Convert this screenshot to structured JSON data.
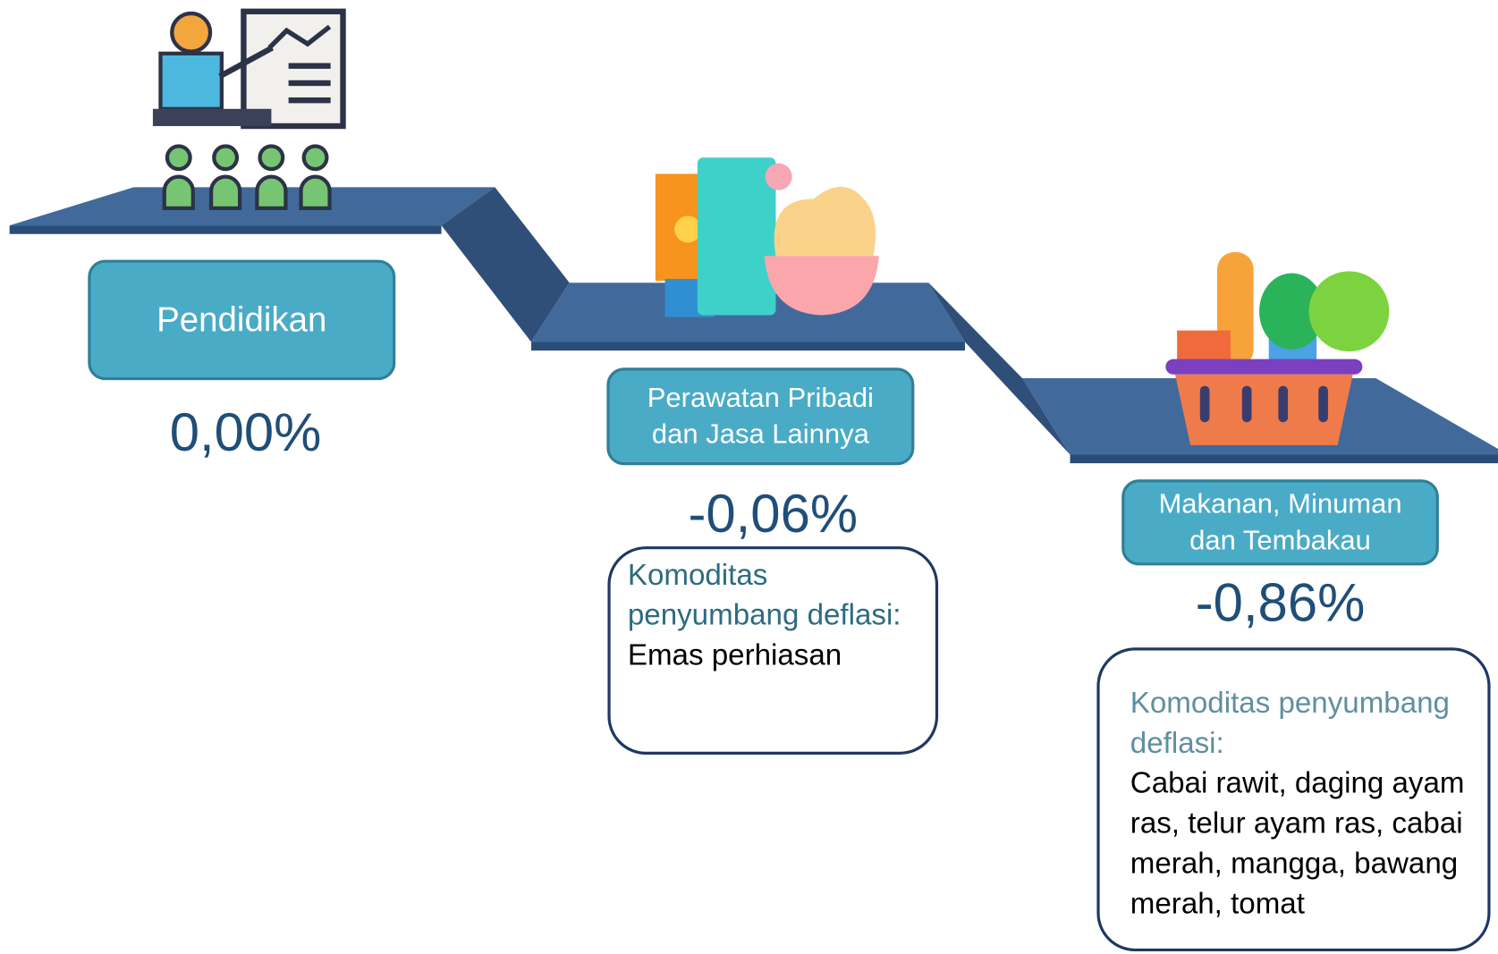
{
  "items": [
    {
      "label": "Pendidikan",
      "value": "0,00%"
    },
    {
      "label": "Perawatan Pribadi dan Jasa Lainnya",
      "value": "-0,06%",
      "note_title": "Komoditas penyumbang deflasi:",
      "note_text": "Emas perhiasan"
    },
    {
      "label": "Makanan, Minuman dan Tembakau",
      "value": "-0,86%",
      "note_title": "Komoditas penyumbang deflasi:",
      "note_text": "Cabai rawit, daging ayam ras, telur ayam ras, cabai merah, mangga, bawang merah, tomat"
    }
  ]
}
